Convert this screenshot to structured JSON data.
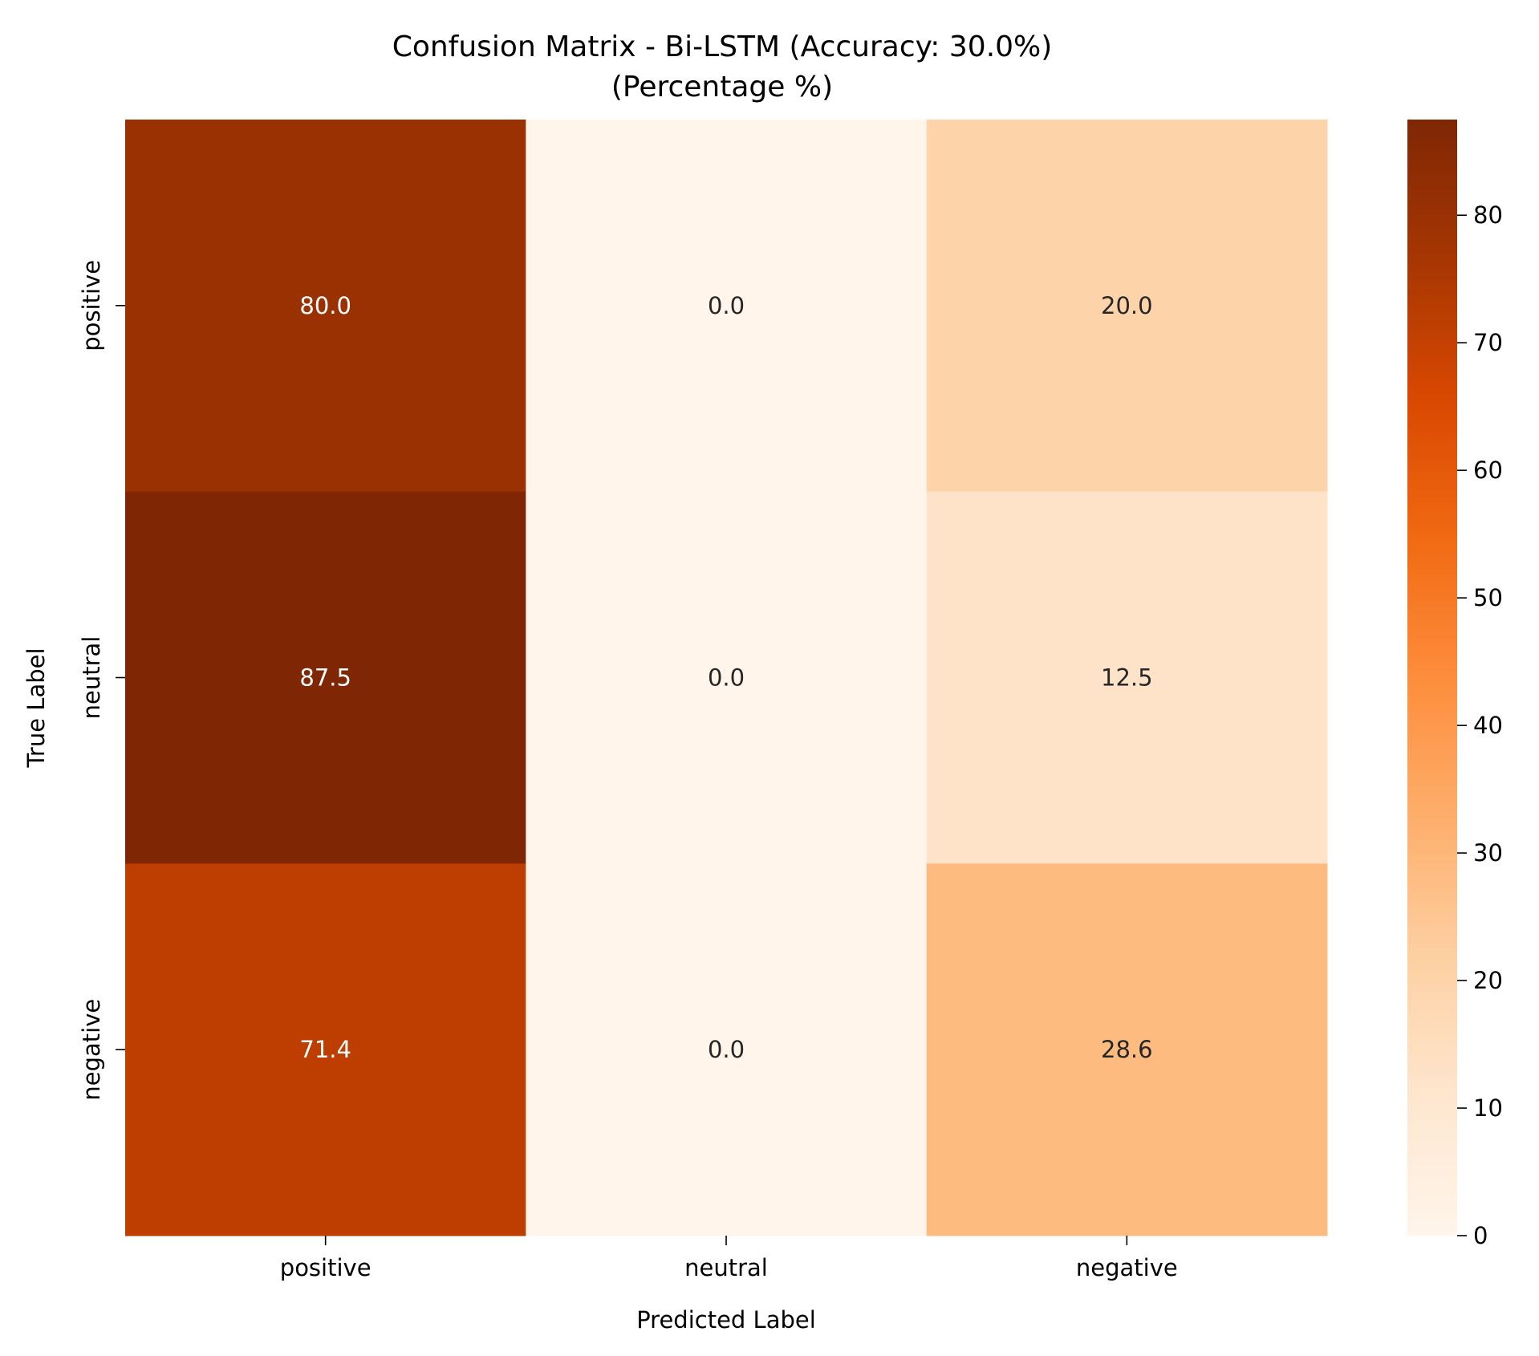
{
  "chart_data": {
    "type": "heatmap",
    "title": "Confusion Matrix - Bi-LSTM (Accuracy: 30.0%)",
    "subtitle": "(Percentage %)",
    "xlabel": "Predicted Label",
    "ylabel": "True Label",
    "x_categories": [
      "positive",
      "neutral",
      "negative"
    ],
    "y_categories": [
      "positive",
      "neutral",
      "negative"
    ],
    "values": [
      [
        80.0,
        0.0,
        20.0
      ],
      [
        87.5,
        0.0,
        12.5
      ],
      [
        71.4,
        0.0,
        28.6
      ]
    ],
    "cell_labels": [
      [
        "80.0",
        "0.0",
        "20.0"
      ],
      [
        "87.5",
        "0.0",
        "12.5"
      ],
      [
        "71.4",
        "0.0",
        "28.6"
      ]
    ],
    "colormap": "Oranges",
    "colorbar": {
      "range": [
        0,
        87.5
      ],
      "ticks": [
        0,
        10,
        20,
        30,
        40,
        50,
        60,
        70,
        80
      ],
      "tick_labels": [
        "0",
        "10",
        "20",
        "30",
        "40",
        "50",
        "60",
        "70",
        "80"
      ]
    },
    "grid": false
  }
}
